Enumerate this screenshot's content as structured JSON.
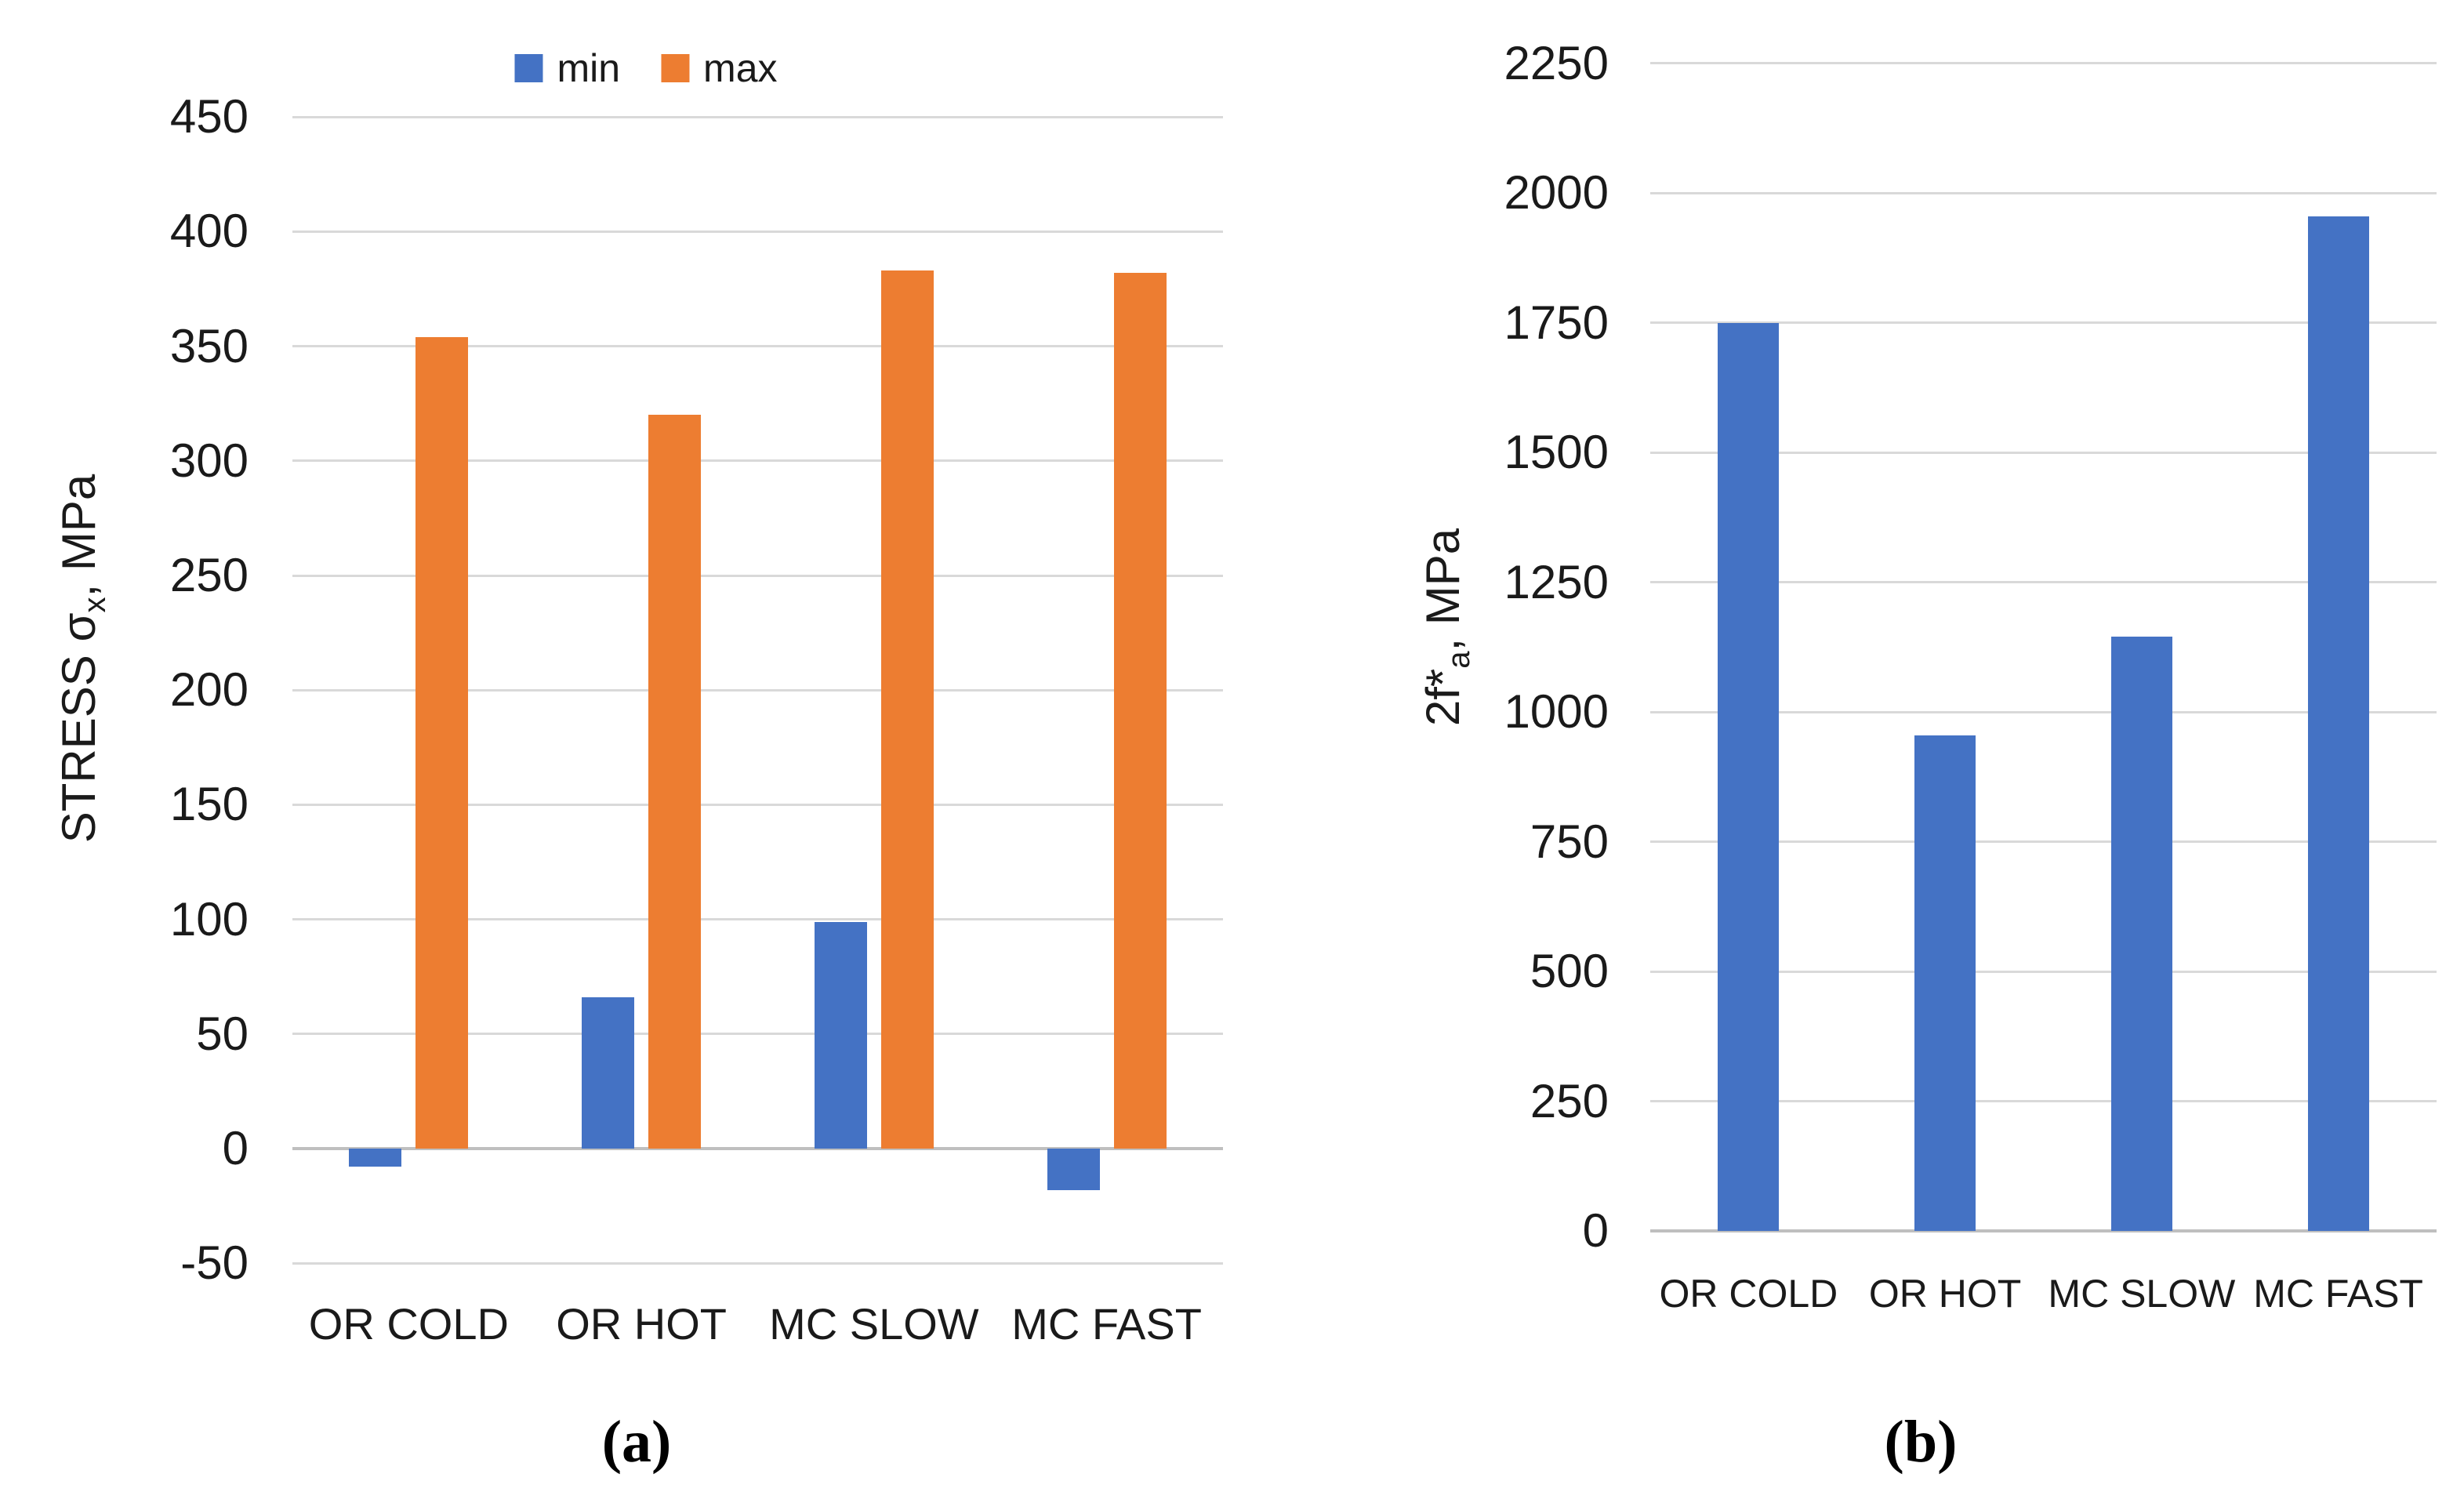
{
  "figure": {
    "background": "#ffffff",
    "grid_color": "#d9d9d9",
    "axis_color": "#bfbfbf",
    "text_color": "#1a1a1a",
    "panel_a": {
      "caption": "(a)",
      "ylabel_parts": {
        "prefix": "STRESS σ",
        "sub": "x",
        "suffix": ", MPa"
      },
      "legend": {
        "min_label": "min",
        "max_label": "max"
      }
    },
    "panel_b": {
      "caption": "(b)",
      "ylabel_parts": {
        "prefix": "2f*",
        "sub": "a",
        "suffix": ", MPa"
      }
    }
  },
  "chart_data": [
    {
      "type": "bar",
      "panel": "a",
      "title": "",
      "categories": [
        "OR COLD",
        "OR HOT",
        "MC SLOW",
        "MC FAST"
      ],
      "series": [
        {
          "name": "min",
          "color": "#4472C4",
          "values": [
            -8,
            66,
            99,
            -18
          ]
        },
        {
          "name": "max",
          "color": "#ED7D31",
          "values": [
            354,
            320,
            383,
            382
          ]
        }
      ],
      "ylabel": "STRESS σx, MPa",
      "xlabel": "",
      "ylim": [
        -50,
        450
      ],
      "yticks": [
        450,
        400,
        350,
        300,
        250,
        200,
        150,
        100,
        50,
        0,
        -50
      ],
      "grid": true,
      "legend_position": "top"
    },
    {
      "type": "bar",
      "panel": "b",
      "title": "",
      "categories": [
        "OR COLD",
        "OR HOT",
        "MC SLOW",
        "MC FAST"
      ],
      "series": [
        {
          "name": "2f*a",
          "color": "#4472C4",
          "values": [
            1750,
            955,
            1145,
            1955
          ]
        }
      ],
      "ylabel": "2f*a, MPa",
      "xlabel": "",
      "ylim": [
        0,
        2250
      ],
      "yticks": [
        2250,
        2000,
        1750,
        1500,
        1250,
        1000,
        750,
        500,
        250,
        0
      ],
      "grid": true,
      "legend_position": "none"
    }
  ]
}
